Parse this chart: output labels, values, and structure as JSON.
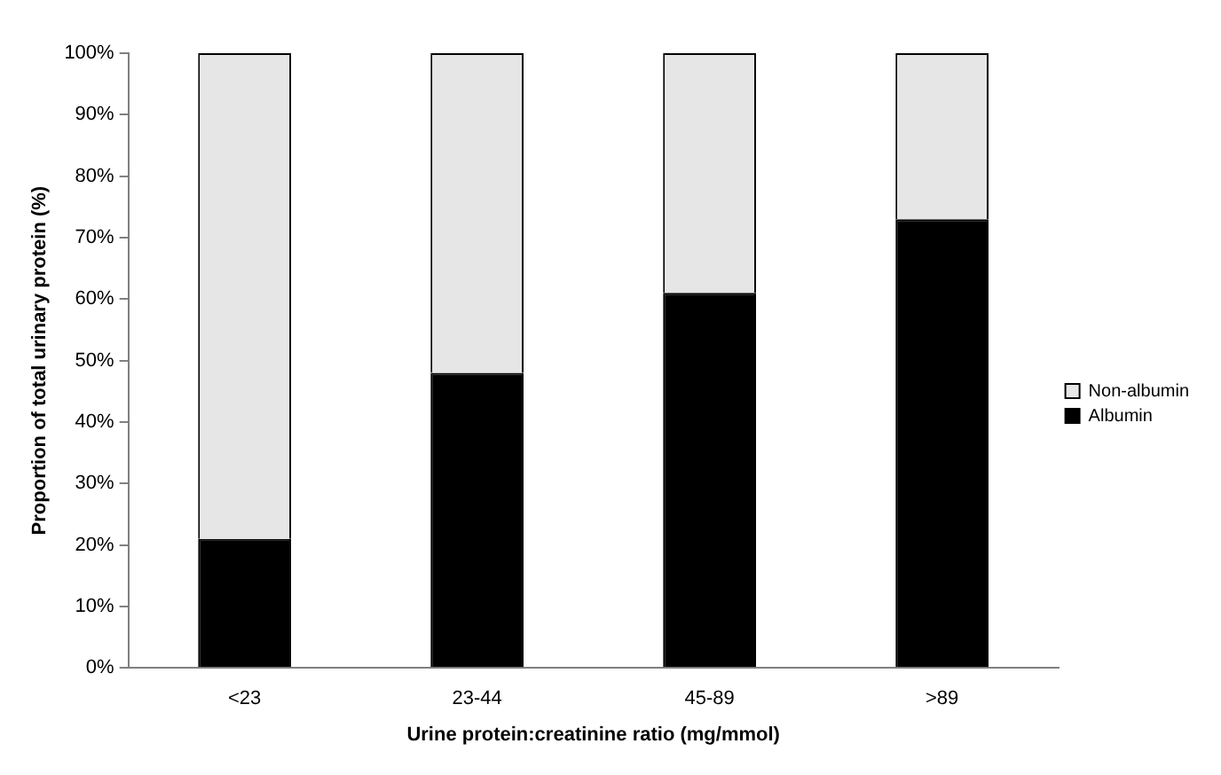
{
  "chart_data": {
    "type": "bar",
    "stacked": true,
    "xlabel": "Urine protein:creatinine ratio (mg/mmol)",
    "ylabel": "Proportion of total urinary protein (%)",
    "categories": [
      "<23",
      "23-44",
      "45-89",
      ">89"
    ],
    "series": [
      {
        "name": "Albumin",
        "color": "#000000",
        "values": [
          21,
          48,
          61,
          73
        ]
      },
      {
        "name": "Non-albumin",
        "color": "#e6e6e6",
        "values": [
          79,
          52,
          39,
          27
        ]
      }
    ],
    "ylim": [
      0,
      100
    ],
    "yticks": [
      {
        "value": 0,
        "label": "0%"
      },
      {
        "value": 10,
        "label": "10%"
      },
      {
        "value": 20,
        "label": "20%"
      },
      {
        "value": 30,
        "label": "30%"
      },
      {
        "value": 40,
        "label": "40%"
      },
      {
        "value": 50,
        "label": "50%"
      },
      {
        "value": 60,
        "label": "60%"
      },
      {
        "value": 70,
        "label": "70%"
      },
      {
        "value": 80,
        "label": "80%"
      },
      {
        "value": 90,
        "label": "90%"
      },
      {
        "value": 100,
        "label": "100%"
      }
    ],
    "grid": false,
    "legend": "right"
  }
}
